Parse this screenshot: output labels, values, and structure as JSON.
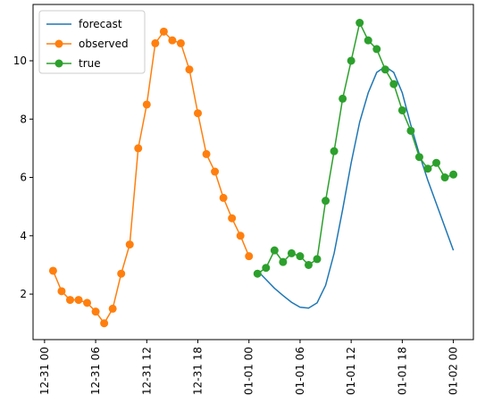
{
  "chart_data": {
    "type": "line",
    "series": [
      {
        "name": "forecast",
        "color": "#1f77b4",
        "marker": false,
        "x": [
          "01-01 01",
          "01-01 02",
          "01-01 03",
          "01-01 04",
          "01-01 05",
          "01-01 06",
          "01-01 07",
          "01-01 08",
          "01-01 09",
          "01-01 10",
          "01-01 11",
          "01-01 12",
          "01-01 13",
          "01-01 14",
          "01-01 15",
          "01-01 16",
          "01-01 17",
          "01-01 18",
          "01-01 19",
          "01-01 20",
          "01-01 21",
          "01-01 22",
          "01-01 23",
          "01-02 00"
        ],
        "values": [
          2.8,
          2.5,
          2.2,
          1.95,
          1.72,
          1.55,
          1.52,
          1.7,
          2.3,
          3.4,
          4.9,
          6.5,
          7.9,
          8.9,
          9.6,
          9.8,
          9.6,
          8.9,
          7.8,
          6.8,
          5.9,
          5.1,
          4.3,
          3.5
        ]
      },
      {
        "name": "observed",
        "color": "#ff7f0e",
        "marker": true,
        "x": [
          "12-31 01",
          "12-31 02",
          "12-31 03",
          "12-31 04",
          "12-31 05",
          "12-31 06",
          "12-31 07",
          "12-31 08",
          "12-31 09",
          "12-31 10",
          "12-31 11",
          "12-31 12",
          "12-31 13",
          "12-31 14",
          "12-31 15",
          "12-31 16",
          "12-31 17",
          "12-31 18",
          "12-31 19",
          "12-31 20",
          "12-31 21",
          "12-31 22",
          "12-31 23",
          "01-01 00"
        ],
        "values": [
          2.8,
          2.1,
          1.8,
          1.8,
          1.7,
          1.4,
          1.0,
          1.5,
          2.7,
          3.7,
          7.0,
          8.5,
          10.6,
          11.0,
          10.7,
          10.6,
          9.7,
          8.2,
          6.8,
          6.2,
          5.3,
          4.6,
          4.0,
          3.3
        ]
      },
      {
        "name": "true",
        "color": "#2ca02c",
        "marker": true,
        "x": [
          "01-01 01",
          "01-01 02",
          "01-01 03",
          "01-01 04",
          "01-01 05",
          "01-01 06",
          "01-01 07",
          "01-01 08",
          "01-01 09",
          "01-01 10",
          "01-01 11",
          "01-01 12",
          "01-01 13",
          "01-01 14",
          "01-01 15",
          "01-01 16",
          "01-01 17",
          "01-01 18",
          "01-01 19",
          "01-01 20",
          "01-01 21",
          "01-01 22",
          "01-01 23",
          "01-02 00"
        ],
        "values": [
          2.7,
          2.9,
          3.5,
          3.1,
          3.4,
          3.3,
          3.0,
          3.2,
          5.2,
          6.9,
          8.7,
          10.0,
          11.3,
          10.7,
          10.4,
          9.7,
          9.2,
          8.3,
          7.6,
          6.7,
          6.3,
          6.5,
          6.0,
          6.1
        ]
      }
    ],
    "xlim": [
      "12-30 22:39",
      "01-02 02:21"
    ],
    "xticks": [
      "12-31 00",
      "12-31 06",
      "12-31 12",
      "12-31 18",
      "01-01 00",
      "01-01 06",
      "01-01 12",
      "01-01 18",
      "01-02 00"
    ],
    "ylim": [
      0.44,
      11.93
    ],
    "yticks": [
      2,
      4,
      6,
      8,
      10
    ],
    "legend": "upper left"
  }
}
